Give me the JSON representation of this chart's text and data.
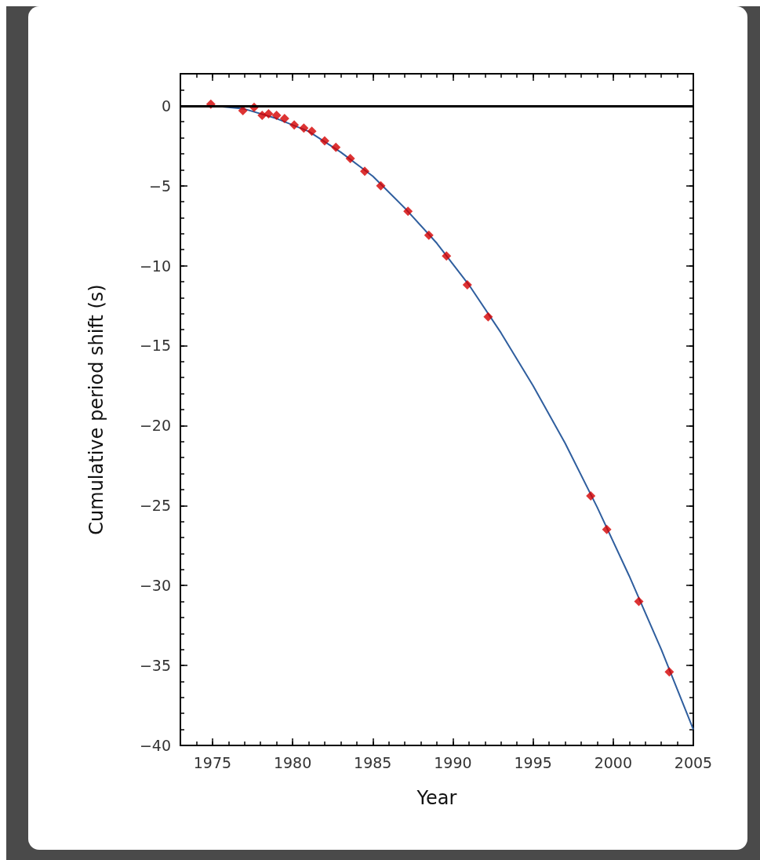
{
  "chart_data": {
    "type": "scatter",
    "xlabel": "Year",
    "ylabel": "Cumulative period shift (s)",
    "xlim": [
      1973,
      2005
    ],
    "ylim": [
      -40,
      2
    ],
    "xticks": [
      1975,
      1980,
      1985,
      1990,
      1995,
      2000,
      2005
    ],
    "yticks": [
      -40,
      -35,
      -30,
      -25,
      -20,
      -15,
      -10,
      -5,
      0
    ],
    "grid": false,
    "marker": "diamond",
    "series": [
      {
        "type": "line",
        "color": "#2f5e9e",
        "marker": "none",
        "x": [
          1975,
          1977,
          1979,
          1981,
          1983,
          1985,
          1987,
          1989,
          1991,
          1993,
          1995,
          1997,
          1999,
          2001,
          2003,
          2005
        ],
        "values": [
          0,
          -0.2,
          -0.8,
          -1.6,
          -2.9,
          -4.4,
          -6.4,
          -8.6,
          -11.2,
          -14.2,
          -17.5,
          -21.1,
          -25.1,
          -29.4,
          -34.0,
          -39.0
        ]
      },
      {
        "color": "#d40000",
        "x": [
          1974.9,
          1976.9,
          1977.6,
          1978.1,
          1978.5,
          1979.0,
          1979.5,
          1980.1,
          1980.7,
          1981.2,
          1982.0,
          1982.7,
          1983.6,
          1984.5,
          1985.5,
          1987.2,
          1988.5,
          1989.6,
          1990.9,
          1992.2,
          1998.6,
          1999.6,
          2001.6,
          2003.5
        ],
        "values": [
          0.1,
          -0.3,
          -0.1,
          -0.6,
          -0.5,
          -0.6,
          -0.8,
          -1.2,
          -1.4,
          -1.6,
          -2.2,
          -2.6,
          -3.3,
          -4.1,
          -5.0,
          -6.6,
          -8.1,
          -9.4,
          -11.2,
          -13.2,
          -24.4,
          -26.5,
          -31.0,
          -35.4
        ]
      }
    ],
    "ref_lines": [
      {
        "axis": "y",
        "value": 0,
        "color": "#000000"
      }
    ]
  }
}
